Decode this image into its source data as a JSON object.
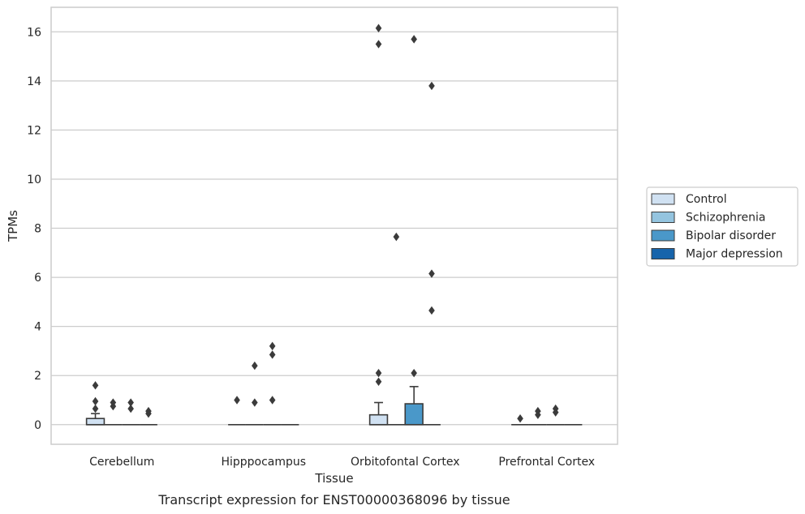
{
  "chart_data": {
    "type": "box",
    "title": "",
    "caption": "Transcript expression for ENST00000368096 by tissue",
    "xlabel": "Tissue",
    "ylabel": "TPMs",
    "ylim": [
      -0.8,
      17
    ],
    "yticks": [
      0,
      2,
      4,
      6,
      8,
      10,
      12,
      14,
      16
    ],
    "grid": "horizontal",
    "legend_position": "right",
    "categories": [
      "Cerebellum",
      "Hipppocampus",
      "Orbitofontal Cortex",
      "Prefrontal Cortex"
    ],
    "series": [
      {
        "name": "Control",
        "color": "#d0e1f2",
        "boxes": [
          {
            "q1": 0,
            "median": 0,
            "q3": 0.25,
            "whisker_low": 0,
            "whisker_high": 0.45,
            "outliers": [
              0.65,
              0.95,
              1.6
            ]
          },
          {
            "q1": 0,
            "median": 0,
            "q3": 0,
            "whisker_low": 0,
            "whisker_high": 0,
            "outliers": [
              1.0
            ]
          },
          {
            "q1": 0,
            "median": 0,
            "q3": 0.4,
            "whisker_low": 0,
            "whisker_high": 0.9,
            "outliers": [
              1.75,
              2.1,
              15.5,
              16.15
            ]
          },
          {
            "q1": 0,
            "median": 0,
            "q3": 0,
            "whisker_low": 0,
            "whisker_high": 0,
            "outliers": [
              0.25
            ]
          }
        ]
      },
      {
        "name": "Schizophrenia",
        "color": "#94c4df",
        "boxes": [
          {
            "q1": 0,
            "median": 0,
            "q3": 0,
            "whisker_low": 0,
            "whisker_high": 0,
            "outliers": [
              0.75,
              0.9
            ]
          },
          {
            "q1": 0,
            "median": 0,
            "q3": 0,
            "whisker_low": 0,
            "whisker_high": 0,
            "outliers": [
              0.9,
              2.4
            ]
          },
          {
            "q1": 0,
            "median": 0,
            "q3": 0,
            "whisker_low": 0,
            "whisker_high": 0,
            "outliers": [
              7.65
            ]
          },
          {
            "q1": 0,
            "median": 0,
            "q3": 0,
            "whisker_low": 0,
            "whisker_high": 0,
            "outliers": [
              0.4,
              0.55
            ]
          }
        ]
      },
      {
        "name": "Bipolar disorder",
        "color": "#4a98c9",
        "boxes": [
          {
            "q1": 0,
            "median": 0,
            "q3": 0,
            "whisker_low": 0,
            "whisker_high": 0,
            "outliers": [
              0.65,
              0.9
            ]
          },
          {
            "q1": 0,
            "median": 0,
            "q3": 0,
            "whisker_low": 0,
            "whisker_high": 0,
            "outliers": [
              1.0,
              2.85,
              3.2
            ]
          },
          {
            "q1": 0,
            "median": 0,
            "q3": 0.85,
            "whisker_low": 0,
            "whisker_high": 1.55,
            "outliers": [
              2.1,
              15.7
            ]
          },
          {
            "q1": 0,
            "median": 0,
            "q3": 0,
            "whisker_low": 0,
            "whisker_high": 0,
            "outliers": [
              0.5,
              0.65
            ]
          }
        ]
      },
      {
        "name": "Major depression",
        "color": "#1764ab",
        "boxes": [
          {
            "q1": 0,
            "median": 0,
            "q3": 0,
            "whisker_low": 0,
            "whisker_high": 0,
            "outliers": [
              0.45,
              0.55
            ]
          },
          {
            "q1": 0,
            "median": 0,
            "q3": 0,
            "whisker_low": 0,
            "whisker_high": 0,
            "outliers": []
          },
          {
            "q1": 0,
            "median": 0,
            "q3": 0,
            "whisker_low": 0,
            "whisker_high": 0,
            "outliers": [
              4.65,
              6.15,
              13.8
            ]
          },
          {
            "q1": 0,
            "median": 0,
            "q3": 0,
            "whisker_low": 0,
            "whisker_high": 0,
            "outliers": []
          }
        ]
      }
    ]
  }
}
